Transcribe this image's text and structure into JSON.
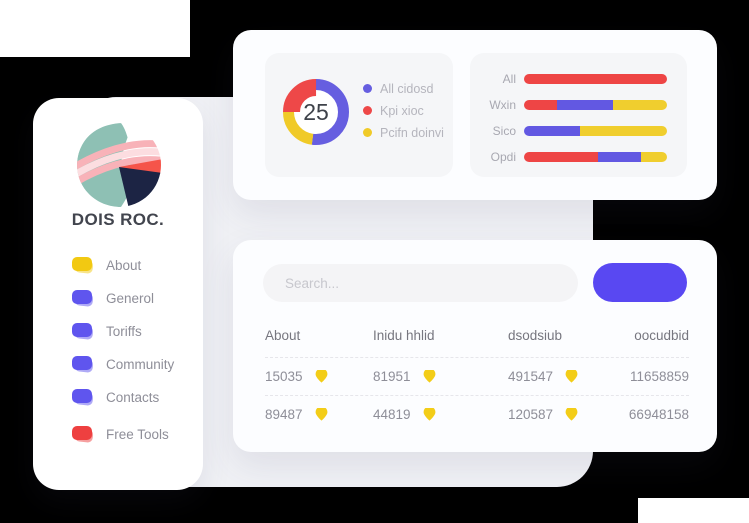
{
  "palette": {
    "red": "#ee4545",
    "purple": "#6258e2",
    "yellow": "#f0ce2e",
    "button": "#5948f2",
    "canvas": "#f0f1f5",
    "shield": "#f3cd18"
  },
  "sidebar": {
    "brand": "DOIS ROC.",
    "logo_colors": {
      "teal": "#8ec0b4",
      "navy": "#1c2444",
      "red": "#f5544a",
      "pink": "#f8b2b8",
      "pink_light": "#fcdde0",
      "white": "#ffffff"
    },
    "items": [
      {
        "label": "About",
        "color": "#f2c912"
      },
      {
        "label": "Generol",
        "color": "#5f55ee"
      },
      {
        "label": "Toriffs",
        "color": "#5f55ee"
      },
      {
        "label": "Community",
        "color": "#5f55ee"
      },
      {
        "label": "Contacts",
        "color": "#5f55ee"
      },
      {
        "label": "Free Tools",
        "color": "#ee4040"
      }
    ]
  },
  "chart_data": [
    {
      "type": "donut",
      "center_value": "25",
      "legend": [
        {
          "label": "All cidosd",
          "color": "#665ee0"
        },
        {
          "label": "Kpi xioc",
          "color": "#ee4848"
        },
        {
          "label": "Pcifn doinvi",
          "color": "#f0ca28"
        }
      ],
      "segments": [
        {
          "name": "All cidosd",
          "color": "#665ee0",
          "percent": 52,
          "thick": false
        },
        {
          "name": "Pcifn doinvi",
          "color": "#f0ca28",
          "percent": 23,
          "thick": false
        },
        {
          "name": "Kpi xioc",
          "color": "#ee4848",
          "percent": 25,
          "thick": true
        }
      ]
    },
    {
      "type": "stacked-bar-horizontal",
      "categories": [
        "All",
        "Wxin",
        "Sico",
        "Opdi"
      ],
      "rows": [
        [
          {
            "color": "#ee4545",
            "percent": 100
          }
        ],
        [
          {
            "color": "#ee4545",
            "percent": 23
          },
          {
            "color": "#6258e2",
            "percent": 39
          },
          {
            "color": "#f0ce2e",
            "percent": 38
          }
        ],
        [
          {
            "color": "#6258e2",
            "percent": 39
          },
          {
            "color": "#f0ce2e",
            "percent": 61
          }
        ],
        [
          {
            "color": "#ee4545",
            "percent": 52
          },
          {
            "color": "#6258e2",
            "percent": 30
          },
          {
            "color": "#f0ce2e",
            "percent": 18
          }
        ]
      ]
    }
  ],
  "search": {
    "placeholder": "Search..."
  },
  "table": {
    "headers": [
      "About",
      "Inidu hhlid",
      "dsodsiub",
      "oocudbid"
    ],
    "rows": [
      [
        {
          "value": "15035",
          "icon": true
        },
        {
          "value": "81951",
          "icon": true
        },
        {
          "value": "491547",
          "icon": true
        },
        {
          "value": "11658859",
          "icon": false
        }
      ],
      [
        {
          "value": "89487",
          "icon": true
        },
        {
          "value": "44819",
          "icon": true
        },
        {
          "value": "120587",
          "icon": true
        },
        {
          "value": "66948158",
          "icon": false
        }
      ]
    ]
  }
}
